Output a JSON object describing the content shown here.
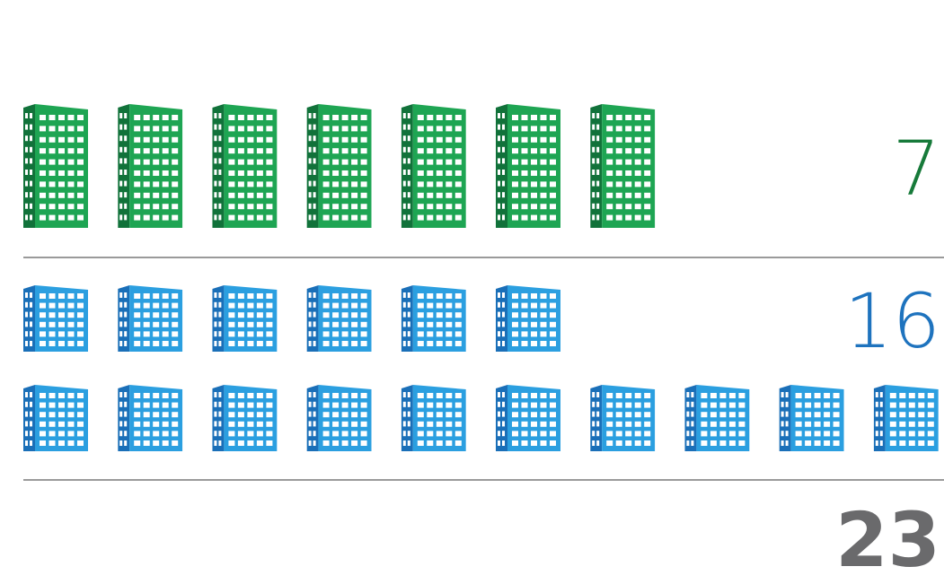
{
  "chart_data": {
    "type": "pictogram",
    "unit_icon": "building-icon",
    "series": [
      {
        "value": 7,
        "label": "7",
        "color": "#1ea553",
        "shade": "#11723a",
        "count_color": "#177a3a"
      },
      {
        "value": 16,
        "label": "16",
        "color": "#2b9fe0",
        "shade": "#1a6fb8",
        "count_color": "#1e73be"
      }
    ],
    "total": {
      "value": 23,
      "label": "23",
      "color": "#6a6a6c"
    }
  }
}
